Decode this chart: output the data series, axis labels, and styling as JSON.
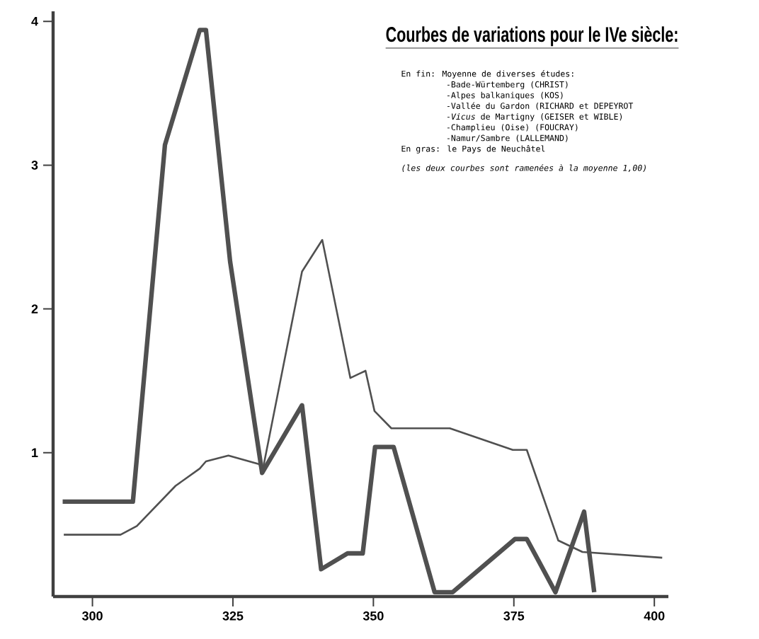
{
  "chart_data": {
    "type": "line",
    "title": "Courbes de variations pour le IVe siècle:",
    "annotations": [
      "En fin: Moyenne de diverses études:",
      "-Bade-Würtemberg (CHRIST)",
      "-Alpes balkaniques (KOS)",
      "-Vallée du Gardon (RICHARD et DEPEYROT",
      "-*Vicus* de Martigny (GEISER et WIBLE)",
      "-Champlieu (Oise) (FOUCRAY)",
      "-Namur/Sambre (LALLEMAND)",
      "En gras: le Pays de Neuchâtel",
      "(les deux courbes sont ramenées à la moyenne 1,00)"
    ],
    "xlim": [
      293,
      402.5
    ],
    "xticks": [
      300,
      325,
      350,
      375,
      400
    ],
    "ylim": [
      0,
      4.07
    ],
    "yticks": [
      1,
      2,
      3,
      4
    ],
    "grid": false,
    "marker": "none",
    "line_style": "solid",
    "series": [
      {
        "color": "#505050",
        "x": [
          294.7,
          307.2,
          312.9,
          319.1,
          320.2,
          324.5,
          330.2,
          337.3,
          340.7,
          345.4,
          348.1,
          350.3,
          353.6,
          360.9,
          364.1,
          375.2,
          377.3,
          382.4,
          387.5,
          389.3
        ],
        "values": [
          0.66,
          0.66,
          3.14,
          3.94,
          3.94,
          2.33,
          0.86,
          1.33,
          0.19,
          0.3,
          0.3,
          1.04,
          1.04,
          0.03,
          0.03,
          0.4,
          0.4,
          0.03,
          0.59,
          0.03
        ]
      },
      {
        "color": "#505050",
        "x": [
          294.9,
          305.0,
          307.9,
          314.8,
          319.1,
          320.2,
          324.2,
          329.7,
          330.2,
          337.3,
          340.9,
          345.9,
          348.6,
          350.2,
          353.2,
          363.6,
          374.8,
          377.3,
          382.9,
          387.2,
          401.4
        ],
        "values": [
          0.43,
          0.43,
          0.49,
          0.77,
          0.89,
          0.94,
          0.98,
          0.92,
          0.86,
          2.26,
          2.48,
          1.52,
          1.57,
          1.29,
          1.17,
          1.17,
          1.02,
          1.02,
          0.39,
          0.31,
          0.27
        ]
      }
    ]
  }
}
